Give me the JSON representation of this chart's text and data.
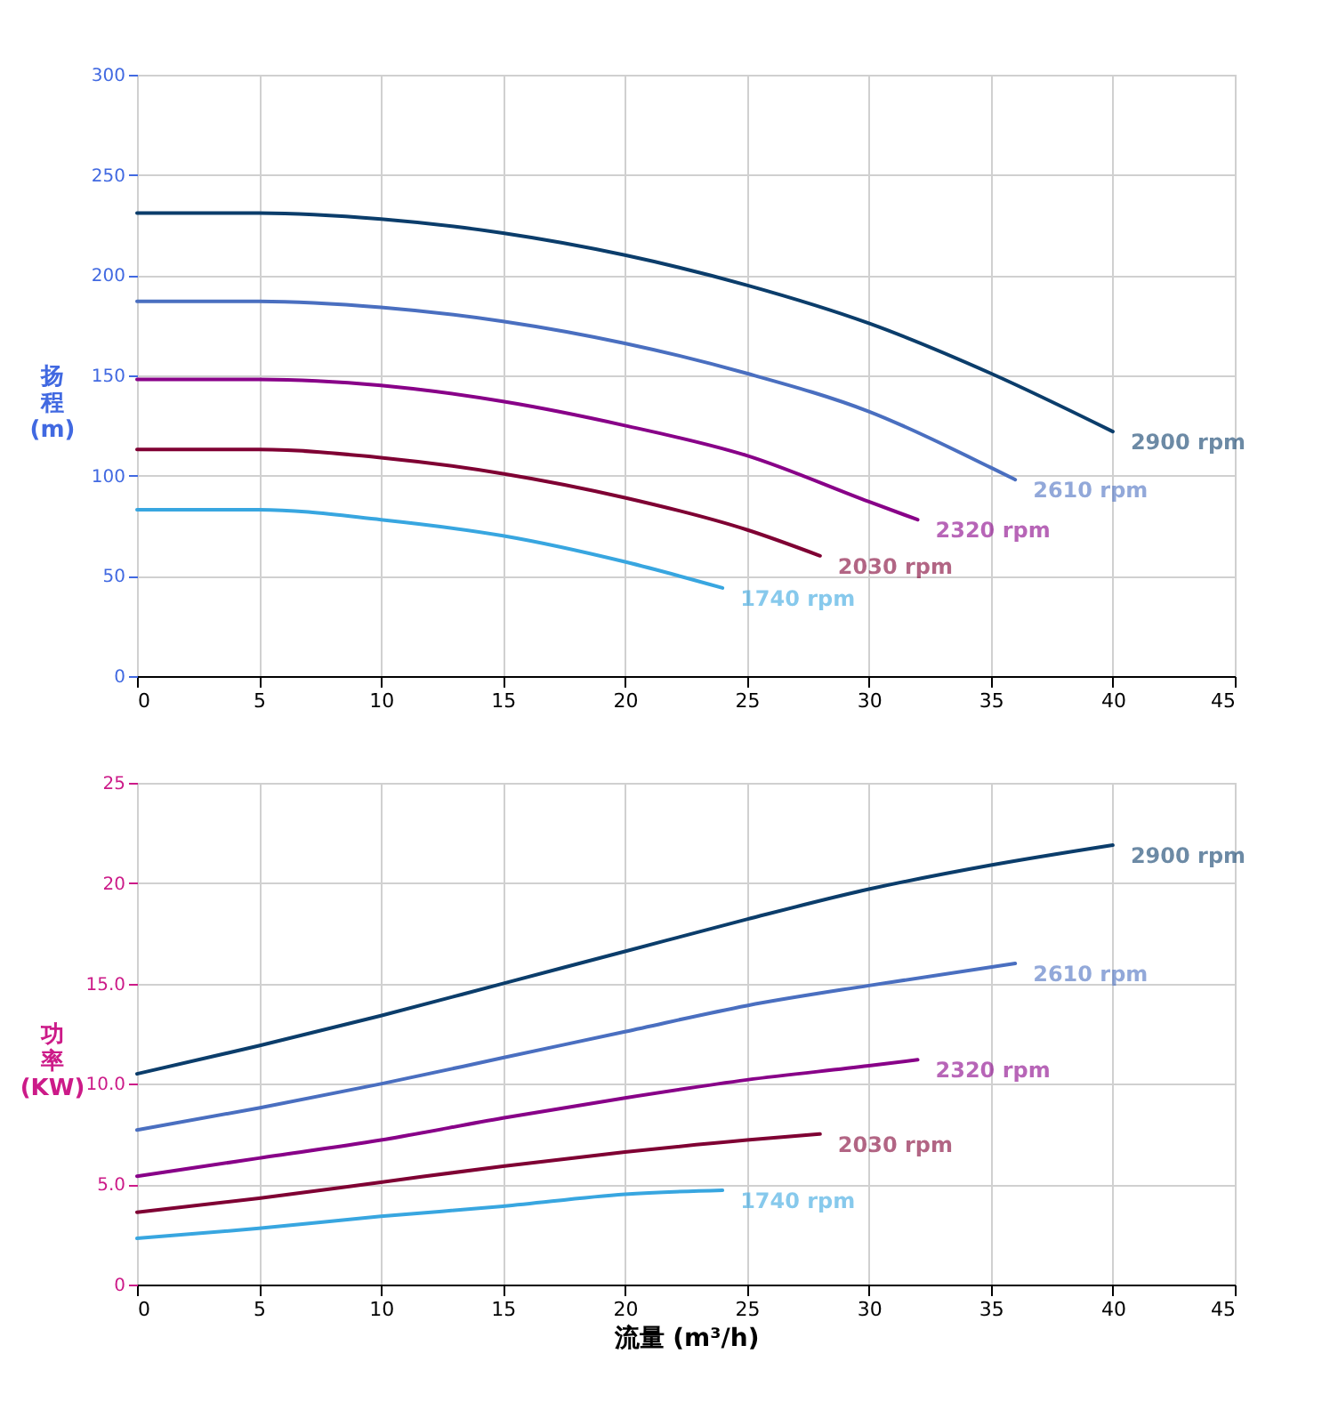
{
  "chart_data": [
    {
      "type": "line",
      "ylabel": "扬程 (m)",
      "xlim": [
        0,
        45
      ],
      "xticks": [
        0,
        5,
        10,
        15,
        20,
        25,
        30,
        35,
        40,
        45
      ],
      "ylim": [
        0,
        300
      ],
      "yticks": [
        0,
        50,
        100,
        150,
        200,
        250,
        300
      ],
      "grid": true,
      "line_style": "solid",
      "series": [
        {
          "name": "2900 rpm",
          "color": "#0b3d6b",
          "x": [
            0,
            5,
            10,
            15,
            20,
            25,
            30,
            35,
            40
          ],
          "values": [
            231,
            231,
            228,
            221,
            210,
            195,
            176,
            151,
            122
          ]
        },
        {
          "name": "2610 rpm",
          "color": "#4a6fc0",
          "x": [
            0,
            5,
            10,
            15,
            20,
            25,
            30,
            35,
            36
          ],
          "values": [
            187,
            187,
            184,
            177,
            166,
            151,
            132,
            104,
            98
          ]
        },
        {
          "name": "2320 rpm",
          "color": "#880088",
          "x": [
            0,
            5,
            10,
            15,
            20,
            25,
            30,
            32
          ],
          "values": [
            148,
            148,
            145,
            137,
            125,
            110,
            87,
            78
          ]
        },
        {
          "name": "2030 rpm",
          "color": "#7f0033",
          "x": [
            0,
            5,
            10,
            15,
            20,
            25,
            28
          ],
          "values": [
            113,
            113,
            109,
            101,
            89,
            73,
            60
          ]
        },
        {
          "name": "1740 rpm",
          "color": "#38a6e0",
          "x": [
            0,
            5,
            10,
            15,
            20,
            24
          ],
          "values": [
            83,
            83,
            78,
            70,
            57,
            44
          ]
        }
      ]
    },
    {
      "type": "line",
      "ylabel": "功率 (KW)",
      "xlabel": "流量 (m³/h)",
      "xlim": [
        0,
        45
      ],
      "xticks": [
        0,
        5,
        10,
        15,
        20,
        25,
        30,
        35,
        40,
        45
      ],
      "ylim": [
        0,
        25
      ],
      "yticks": [
        0,
        {
          "value": 5,
          "label": "5.0"
        },
        {
          "value": 10,
          "label": "10.0"
        },
        {
          "value": 15,
          "label": "15.0"
        },
        20,
        25
      ],
      "grid": true,
      "line_style": "solid",
      "series": [
        {
          "name": "2900 rpm",
          "color": "#0b3d6b",
          "x": [
            0,
            5,
            10,
            15,
            20,
            25,
            30,
            35,
            40
          ],
          "values": [
            10.5,
            11.9,
            13.4,
            15.0,
            16.6,
            18.2,
            19.7,
            20.9,
            21.9
          ]
        },
        {
          "name": "2610 rpm",
          "color": "#4a6fc0",
          "x": [
            0,
            5,
            10,
            15,
            20,
            25,
            30,
            36
          ],
          "values": [
            7.7,
            8.8,
            10.0,
            11.3,
            12.6,
            13.9,
            14.9,
            16.0
          ]
        },
        {
          "name": "2320 rpm",
          "color": "#880088",
          "x": [
            0,
            5,
            10,
            15,
            20,
            25,
            30,
            32
          ],
          "values": [
            5.4,
            6.3,
            7.2,
            8.3,
            9.3,
            10.2,
            10.9,
            11.2
          ]
        },
        {
          "name": "2030 rpm",
          "color": "#7f0033",
          "x": [
            0,
            5,
            10,
            15,
            20,
            25,
            28
          ],
          "values": [
            3.6,
            4.3,
            5.1,
            5.9,
            6.6,
            7.2,
            7.5
          ]
        },
        {
          "name": "1740 rpm",
          "color": "#38a6e0",
          "x": [
            0,
            5,
            10,
            15,
            20,
            24
          ],
          "values": [
            2.3,
            2.8,
            3.4,
            3.9,
            4.5,
            4.7
          ]
        }
      ]
    }
  ]
}
